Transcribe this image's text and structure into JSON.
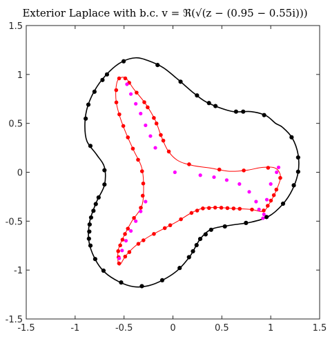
{
  "chart_data": {
    "type": "scatter",
    "title": "Exterior Laplace with b.c. v = ℜ(√(z − (0.95 − 0.55i)))",
    "xlim": [
      -1.5,
      1.5
    ],
    "ylim": [
      -1.5,
      1.5
    ],
    "xticks": [
      "-1.5",
      "-1",
      "-0.5",
      "0",
      "0.5",
      "1",
      "1.5"
    ],
    "yticks": [
      "1.5",
      "1",
      "0.5",
      "0",
      "-0.5",
      "-1",
      "-1.5"
    ],
    "grid": false,
    "colors": {
      "outer": "#000000",
      "inner": "#ff0000",
      "poles": "#ff00ff",
      "axes": "#262626"
    },
    "outer_curve": {
      "style": "line-with-markers",
      "points": [
        [
          1.05,
          0.5
        ],
        [
          0.95,
          0.58
        ],
        [
          0.8,
          0.62
        ],
        [
          0.62,
          0.62
        ],
        [
          0.45,
          0.67
        ],
        [
          0.32,
          0.73
        ],
        [
          0.2,
          0.82
        ],
        [
          0.05,
          0.95
        ],
        [
          -0.1,
          1.07
        ],
        [
          -0.25,
          1.14
        ],
        [
          -0.38,
          1.17
        ],
        [
          -0.52,
          1.13
        ],
        [
          -0.65,
          1.03
        ],
        [
          -0.78,
          0.87
        ],
        [
          -0.87,
          0.68
        ],
        [
          -0.9,
          0.5
        ],
        [
          -0.88,
          0.32
        ],
        [
          -0.78,
          0.18
        ],
        [
          -0.7,
          0.05
        ],
        [
          -0.7,
          -0.13
        ],
        [
          -0.78,
          -0.3
        ],
        [
          -0.85,
          -0.5
        ],
        [
          -0.86,
          -0.7
        ],
        [
          -0.8,
          -0.88
        ],
        [
          -0.7,
          -1.02
        ],
        [
          -0.55,
          -1.12
        ],
        [
          -0.4,
          -1.17
        ],
        [
          -0.25,
          -1.16
        ],
        [
          -0.1,
          -1.1
        ],
        [
          0.05,
          -1.0
        ],
        [
          0.18,
          -0.85
        ],
        [
          0.28,
          -0.68
        ],
        [
          0.4,
          -0.58
        ],
        [
          0.6,
          -0.54
        ],
        [
          0.8,
          -0.51
        ],
        [
          0.98,
          -0.45
        ],
        [
          1.12,
          -0.33
        ],
        [
          1.22,
          -0.18
        ],
        [
          1.28,
          0.0
        ],
        [
          1.28,
          0.18
        ],
        [
          1.22,
          0.35
        ],
        [
          1.12,
          0.46
        ],
        [
          1.05,
          0.5
        ]
      ],
      "marker_t": [
        0.02,
        0.05,
        0.06,
        0.09,
        0.1,
        0.12,
        0.15,
        0.19,
        0.24,
        0.27,
        0.28,
        0.3,
        0.32,
        0.34,
        0.38,
        0.42,
        0.44,
        0.46,
        0.47,
        0.48,
        0.49,
        0.5,
        0.51,
        0.52,
        0.53,
        0.55,
        0.57,
        0.6,
        0.63,
        0.66,
        0.69,
        0.71,
        0.72,
        0.73,
        0.74,
        0.75,
        0.76,
        0.78,
        0.81,
        0.84,
        0.87,
        0.9,
        0.92,
        0.94,
        0.97
      ]
    },
    "inner_curve": {
      "style": "line-with-markers",
      "points": [
        [
          -0.55,
          0.96
        ],
        [
          -0.48,
          0.96
        ],
        [
          -0.4,
          0.85
        ],
        [
          -0.28,
          0.7
        ],
        [
          -0.18,
          0.53
        ],
        [
          -0.12,
          0.37
        ],
        [
          -0.05,
          0.22
        ],
        [
          0.05,
          0.12
        ],
        [
          0.2,
          0.07
        ],
        [
          0.4,
          0.04
        ],
        [
          0.58,
          0.01
        ],
        [
          0.75,
          0.02
        ],
        [
          0.92,
          0.05
        ],
        [
          1.05,
          0.04
        ],
        [
          1.1,
          -0.05
        ],
        [
          1.05,
          -0.2
        ],
        [
          0.98,
          -0.33
        ],
        [
          0.92,
          -0.4
        ],
        [
          0.8,
          -0.38
        ],
        [
          0.62,
          -0.37
        ],
        [
          0.45,
          -0.36
        ],
        [
          0.3,
          -0.37
        ],
        [
          0.18,
          -0.42
        ],
        [
          0.05,
          -0.5
        ],
        [
          -0.1,
          -0.58
        ],
        [
          -0.25,
          -0.66
        ],
        [
          -0.38,
          -0.75
        ],
        [
          -0.48,
          -0.85
        ],
        [
          -0.55,
          -0.95
        ],
        [
          -0.56,
          -0.8
        ],
        [
          -0.5,
          -0.65
        ],
        [
          -0.42,
          -0.5
        ],
        [
          -0.32,
          -0.35
        ],
        [
          -0.3,
          -0.15
        ],
        [
          -0.32,
          0.05
        ],
        [
          -0.4,
          0.22
        ],
        [
          -0.48,
          0.4
        ],
        [
          -0.54,
          0.56
        ],
        [
          -0.58,
          0.72
        ],
        [
          -0.58,
          0.88
        ],
        [
          -0.55,
          0.96
        ]
      ],
      "marker_t": [
        0.0,
        0.01,
        0.02,
        0.04,
        0.06,
        0.07,
        0.09,
        0.1,
        0.12,
        0.13,
        0.15,
        0.19,
        0.24,
        0.28,
        0.32,
        0.35,
        0.37,
        0.38,
        0.39,
        0.4,
        0.41,
        0.43,
        0.45,
        0.46,
        0.47,
        0.48,
        0.49,
        0.5,
        0.51,
        0.52,
        0.53,
        0.55,
        0.57,
        0.58,
        0.6,
        0.62,
        0.63,
        0.65,
        0.66,
        0.68,
        0.69,
        0.7,
        0.71,
        0.72,
        0.73,
        0.74,
        0.76,
        0.78,
        0.8,
        0.82,
        0.84,
        0.86,
        0.88,
        0.9,
        0.92,
        0.94,
        0.96,
        0.98
      ]
    },
    "poles": {
      "style": "markers",
      "points": [
        [
          -0.47,
          0.9
        ],
        [
          -0.43,
          0.8
        ],
        [
          -0.38,
          0.7
        ],
        [
          -0.33,
          0.6
        ],
        [
          -0.28,
          0.48
        ],
        [
          -0.23,
          0.37
        ],
        [
          -0.18,
          0.25
        ],
        [
          0.02,
          0.0
        ],
        [
          0.28,
          -0.03
        ],
        [
          0.42,
          -0.05
        ],
        [
          0.55,
          -0.08
        ],
        [
          0.68,
          -0.12
        ],
        [
          0.78,
          -0.2
        ],
        [
          0.85,
          -0.3
        ],
        [
          0.88,
          -0.38
        ],
        [
          0.92,
          -0.47
        ],
        [
          0.93,
          -0.43
        ],
        [
          0.96,
          -0.28
        ],
        [
          1.0,
          -0.12
        ],
        [
          1.06,
          0.0
        ],
        [
          1.08,
          0.05
        ],
        [
          -0.55,
          -0.88
        ],
        [
          -0.52,
          -0.8
        ],
        [
          -0.48,
          -0.7
        ],
        [
          -0.43,
          -0.6
        ],
        [
          -0.38,
          -0.5
        ],
        [
          -0.33,
          -0.4
        ],
        [
          -0.28,
          -0.3
        ]
      ]
    }
  }
}
